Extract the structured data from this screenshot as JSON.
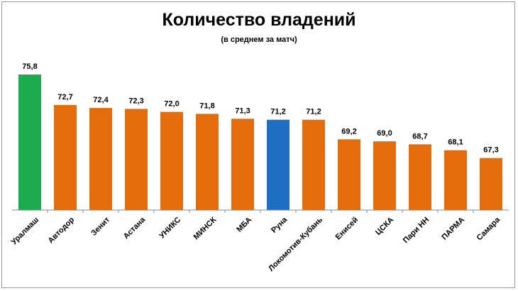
{
  "chart_data": {
    "type": "bar",
    "title": "Количество владений",
    "subtitle": "(в среднем за матч)",
    "categories": [
      "Уралмаш",
      "Автодор",
      "Зенит",
      "Астана",
      "УНИКС",
      "МИНСК",
      "МБА",
      "Руна",
      "Локомотив-Кубань",
      "Енисей",
      "ЦСКА",
      "Пари НН",
      "ПАРМА",
      "Самара"
    ],
    "values": [
      75.8,
      72.7,
      72.4,
      72.3,
      72.0,
      71.8,
      71.3,
      71.2,
      71.2,
      69.2,
      69.0,
      68.7,
      68.1,
      67.3
    ],
    "value_labels": [
      "75,8",
      "72,7",
      "72,4",
      "72,3",
      "72,0",
      "71,8",
      "71,3",
      "71,2",
      "71,2",
      "69,2",
      "69,0",
      "68,7",
      "68,1",
      "67,3"
    ],
    "bar_colors": [
      "#1aac4f",
      "#e46c0a",
      "#e46c0a",
      "#e46c0a",
      "#e46c0a",
      "#e46c0a",
      "#e46c0a",
      "#1f6fc2",
      "#e46c0a",
      "#e46c0a",
      "#e46c0a",
      "#e46c0a",
      "#e46c0a",
      "#e46c0a"
    ],
    "ylim": [
      62.0,
      76.5
    ],
    "grid": false,
    "legend": "none"
  }
}
